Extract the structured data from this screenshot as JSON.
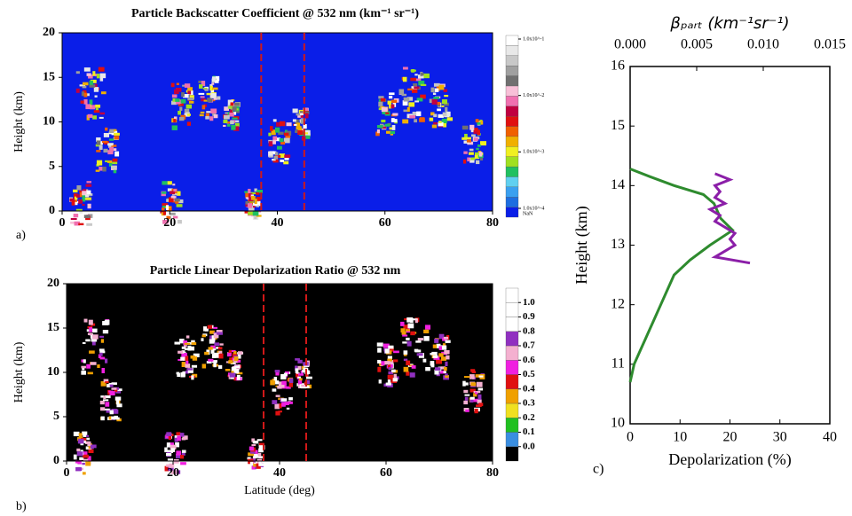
{
  "chart_data": [
    {
      "type": "curtain",
      "panel": "a)",
      "title": "Particle Backscatter Coefficient @ 532 nm (km⁻¹ sr⁻¹)",
      "ylabel": "Height (km)",
      "xlim": [
        0,
        80
      ],
      "xticks": [
        0,
        20,
        40,
        60,
        80
      ],
      "ylim": [
        0,
        20
      ],
      "yticks": [
        0,
        5,
        10,
        15,
        20
      ],
      "markers": [
        37,
        45
      ],
      "marker_color": "#d01818",
      "background": "#0a1ee8",
      "colorbar": {
        "log": true,
        "clim": [
          0.0001,
          0.1
        ],
        "ticks": [
          {
            "value": 0.1,
            "label": "1.0x10^-1"
          },
          {
            "value": 0.01,
            "label": "1.0x10^-2"
          },
          {
            "value": 0.001,
            "label": "1.0x10^-3"
          },
          {
            "value": 0.0001,
            "label": "1.0x10^-4"
          }
        ],
        "nan_label": "NaN",
        "colors": [
          "#0a1ee8",
          "#1e6ee0",
          "#3aa0f0",
          "#60d0f0",
          "#20c060",
          "#a0e020",
          "#f0f020",
          "#f0b000",
          "#f06000",
          "#e01010",
          "#c00040",
          "#f070b0",
          "#f8c0d8",
          "#707070",
          "#a0a0a0",
          "#c8c8c8",
          "#e8e8e8",
          "#ffffff"
        ]
      }
    },
    {
      "type": "curtain",
      "panel": "b)",
      "title": "Particle Linear Depolarization Ratio @ 532 nm",
      "xlabel": "Latitude (deg)",
      "ylabel": "Height (km)",
      "xlim": [
        0,
        80
      ],
      "xticks": [
        0,
        20,
        40,
        60,
        80
      ],
      "ylim": [
        0,
        20
      ],
      "yticks": [
        0,
        5,
        10,
        15,
        20
      ],
      "markers": [
        37,
        45
      ],
      "marker_color": "#d01818",
      "background": "#000000",
      "colorbar": {
        "log": false,
        "clim": [
          -0.1,
          1.1
        ],
        "ticks": [
          {
            "value": 0,
            "label": "0.0"
          },
          {
            "value": 0.1,
            "label": "0.1"
          },
          {
            "value": 0.2,
            "label": "0.2"
          },
          {
            "value": 0.3,
            "label": "0.3"
          },
          {
            "value": 0.4,
            "label": "0.4"
          },
          {
            "value": 0.5,
            "label": "0.5"
          },
          {
            "value": 0.6,
            "label": "0.6"
          },
          {
            "value": 0.7,
            "label": "0.7"
          },
          {
            "value": 0.8,
            "label": "0.8"
          },
          {
            "value": 0.9,
            "label": "0.9"
          },
          {
            "value": 1,
            "label": "1.0"
          }
        ],
        "colors": [
          "#000000",
          "#3a8ee0",
          "#20c020",
          "#f0e020",
          "#f0a000",
          "#e01010",
          "#f020e0",
          "#f4b0d0",
          "#9030c0",
          "#ffffff",
          "#ffffff",
          "#ffffff"
        ]
      }
    },
    {
      "type": "profile",
      "panel": "c)",
      "xlabel": "Depolarization (%)",
      "ylabel": "Height (km)",
      "x2label": "βₚₐᵣₜ (km⁻¹sr⁻¹)",
      "xlim": [
        0,
        40
      ],
      "xticks": [
        0,
        10,
        20,
        30,
        40
      ],
      "ylim": [
        10,
        16
      ],
      "yticks": [
        10,
        11,
        12,
        13,
        14,
        15,
        16
      ],
      "x2lim": [
        0,
        0.015
      ],
      "x2ticks": [
        {
          "value": 0,
          "label": "0.000"
        },
        {
          "value": 0.005,
          "label": "0.005"
        },
        {
          "value": 0.01,
          "label": "0.010"
        },
        {
          "value": 0.015,
          "label": "0.015"
        }
      ],
      "x_color": "#8b1fa8",
      "x2_color": "#2e8b2e",
      "series": [
        {
          "color": "#2e8b2e",
          "axis": "x2",
          "values": [
            0,
            0.0003,
            0.0008,
            0.0013,
            0.0018,
            0.0023,
            0.0028,
            0.0033,
            0.0045,
            0.006,
            0.0077,
            0.0068,
            0.0063,
            0.0055,
            0.0033,
            0.0015,
            0
          ],
          "y": [
            10.7,
            11,
            11.25,
            11.5,
            11.75,
            12,
            12.25,
            12.5,
            12.75,
            13,
            13.25,
            13.45,
            13.7,
            13.85,
            14,
            14.15,
            14.28
          ]
        },
        {
          "color": "#8b1fa8",
          "axis": "x",
          "values": [
            24,
            17,
            19,
            21,
            20,
            21,
            19,
            17,
            18,
            16,
            19,
            17,
            18,
            17,
            20,
            17
          ],
          "y": [
            12.7,
            12.8,
            12.9,
            13,
            13.1,
            13.2,
            13.3,
            13.4,
            13.5,
            13.6,
            13.7,
            13.8,
            13.9,
            14,
            14.1,
            14.2
          ]
        }
      ]
    }
  ]
}
